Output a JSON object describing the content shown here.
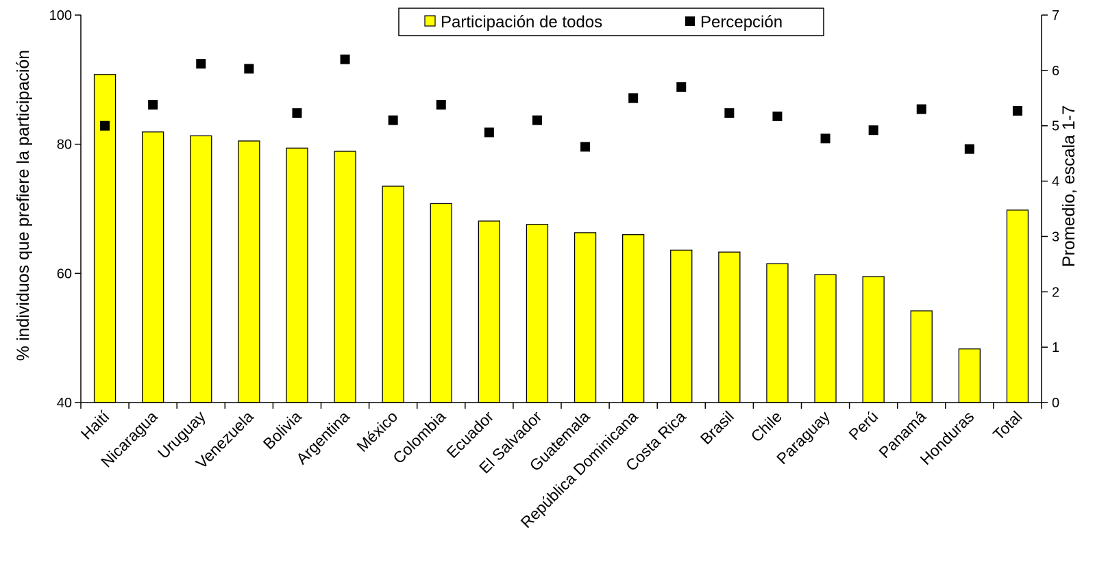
{
  "chart_data": {
    "type": "bar",
    "categories": [
      "Haití",
      "Nicaragua",
      "Uruguay",
      "Venezuela",
      "Bolivia",
      "Argentina",
      "México",
      "Colombia",
      "Ecuador",
      "El Salvador",
      "Guatemala",
      "República Dominicana",
      "Costa Rica",
      "Brasil",
      "Chile",
      "Paraguay",
      "Perú",
      "Panamá",
      "Honduras",
      "Total"
    ],
    "series": [
      {
        "name": "Participación de todos",
        "type": "bar",
        "axis": "left",
        "color": "#ffff00",
        "values": [
          90.8,
          81.9,
          81.3,
          80.5,
          79.4,
          78.9,
          73.5,
          70.8,
          68.1,
          67.6,
          66.3,
          66.0,
          63.6,
          63.3,
          61.5,
          59.8,
          59.5,
          54.2,
          48.3,
          69.8
        ]
      },
      {
        "name": "Percepción",
        "type": "scatter",
        "axis": "right",
        "color": "#000000",
        "values": [
          5.0,
          5.38,
          6.12,
          6.03,
          5.23,
          6.2,
          5.1,
          5.38,
          4.88,
          5.1,
          4.62,
          5.5,
          5.7,
          5.23,
          5.17,
          4.77,
          4.92,
          5.3,
          4.58,
          5.27
        ]
      }
    ],
    "ylabel": "% individuos que prefiere la participación",
    "ylabel_right": "Promedio, escala 1-7",
    "ylim": [
      40,
      100
    ],
    "yticks": [
      40,
      60,
      80,
      100
    ],
    "ylim_right": [
      0,
      7
    ],
    "yticks_right": [
      0,
      1,
      2,
      3,
      4,
      5,
      6,
      7
    ],
    "grid": false,
    "legend": "top-center"
  }
}
